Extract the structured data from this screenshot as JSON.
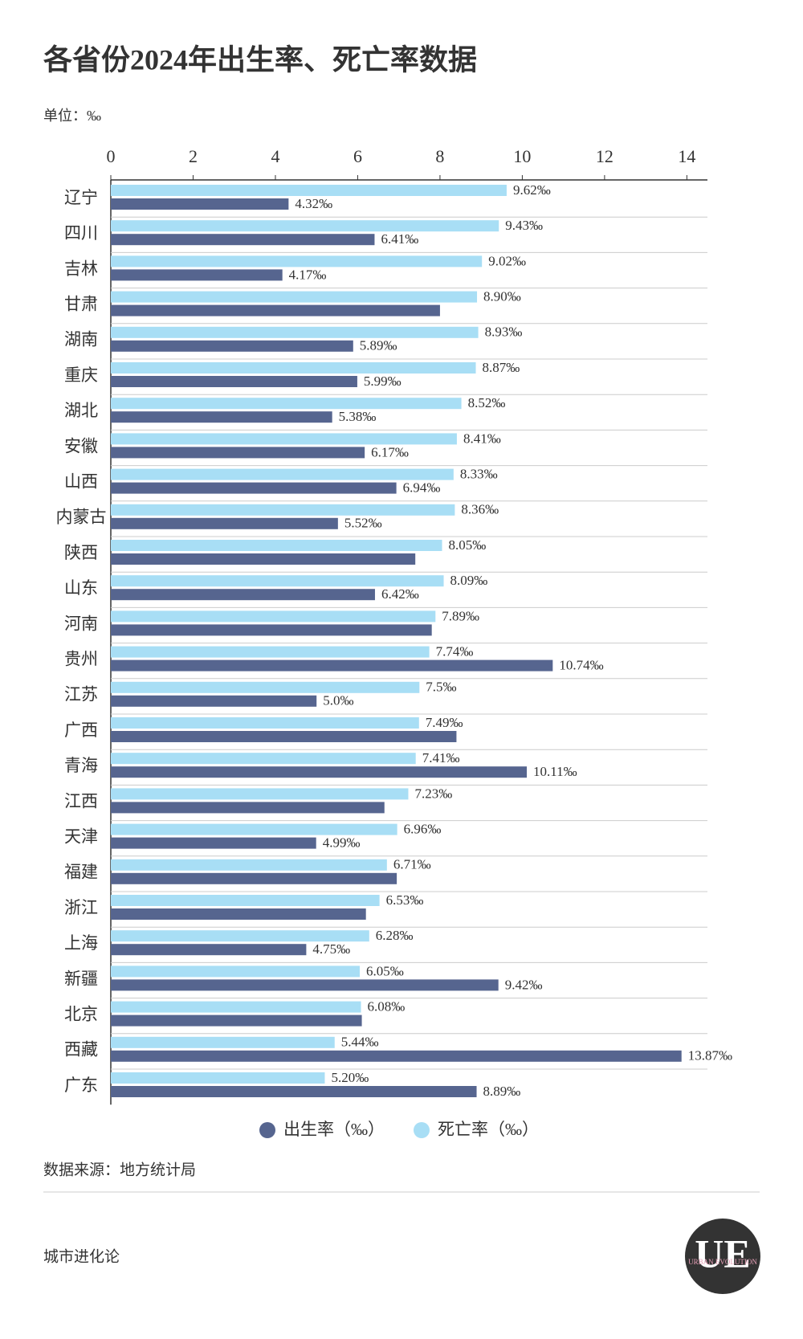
{
  "chart_data": {
    "type": "bar",
    "orientation": "horizontal",
    "title": "各省份2024年出生率、死亡率数据",
    "unit": "单位：‰",
    "source": "数据来源：地方统计局",
    "footer": "城市进化论",
    "logo": {
      "letters": "UE",
      "text": "URBAN EVOLUTION"
    },
    "categories": [
      "辽宁",
      "四川",
      "吉林",
      "甘肃",
      "湖南",
      "重庆",
      "湖北",
      "安徽",
      "山西",
      "内蒙古",
      "陕西",
      "山东",
      "河南",
      "贵州",
      "江苏",
      "广西",
      "青海",
      "江西",
      "天津",
      "福建",
      "浙江",
      "上海",
      "新疆",
      "北京",
      "西藏",
      "广东"
    ],
    "series": [
      {
        "name": "出生率（‰）",
        "color": "#56658f",
        "values": [
          4.32,
          6.41,
          4.17,
          8.0,
          5.89,
          5.99,
          5.38,
          6.17,
          6.94,
          5.52,
          7.4,
          6.42,
          7.8,
          10.74,
          5.0,
          8.4,
          10.11,
          6.65,
          4.99,
          6.95,
          6.2,
          4.75,
          9.42,
          6.1,
          13.87,
          8.89
        ],
        "value_labels": [
          "4.32‰",
          "6.41‰",
          "4.17‰",
          null,
          "5.89‰",
          "5.99‰",
          "5.38‰",
          "6.17‰",
          "6.94‰",
          "5.52‰",
          null,
          "6.42‰",
          null,
          "10.74‰",
          "5.0‰",
          null,
          "10.11‰",
          null,
          "4.99‰",
          null,
          null,
          "4.75‰",
          "9.42‰",
          null,
          "13.87‰",
          "8.89‰"
        ]
      },
      {
        "name": "死亡率（‰）",
        "color": "#a8def5",
        "values": [
          9.62,
          9.43,
          9.02,
          8.9,
          8.93,
          8.87,
          8.52,
          8.41,
          8.33,
          8.36,
          8.05,
          8.09,
          7.89,
          7.74,
          7.5,
          7.49,
          7.41,
          7.23,
          6.96,
          6.71,
          6.53,
          6.28,
          6.05,
          6.08,
          5.44,
          5.2
        ],
        "value_labels": [
          "9.62‰",
          "9.43‰",
          "9.02‰",
          "8.90‰",
          "8.93‰",
          "8.87‰",
          "8.52‰",
          "8.41‰",
          "8.33‰",
          "8.36‰",
          "8.05‰",
          "8.09‰",
          "7.89‰",
          "7.74‰",
          "7.5‰",
          "7.49‰",
          "7.41‰",
          "7.23‰",
          "6.96‰",
          "6.71‰",
          "6.53‰",
          "6.28‰",
          "6.05‰",
          "6.08‰",
          "5.44‰",
          "5.20‰"
        ]
      }
    ],
    "xlim": [
      0,
      14.5
    ],
    "xticks": [
      0,
      2,
      4,
      6,
      8,
      10,
      12,
      14
    ],
    "legend": "bottom"
  }
}
